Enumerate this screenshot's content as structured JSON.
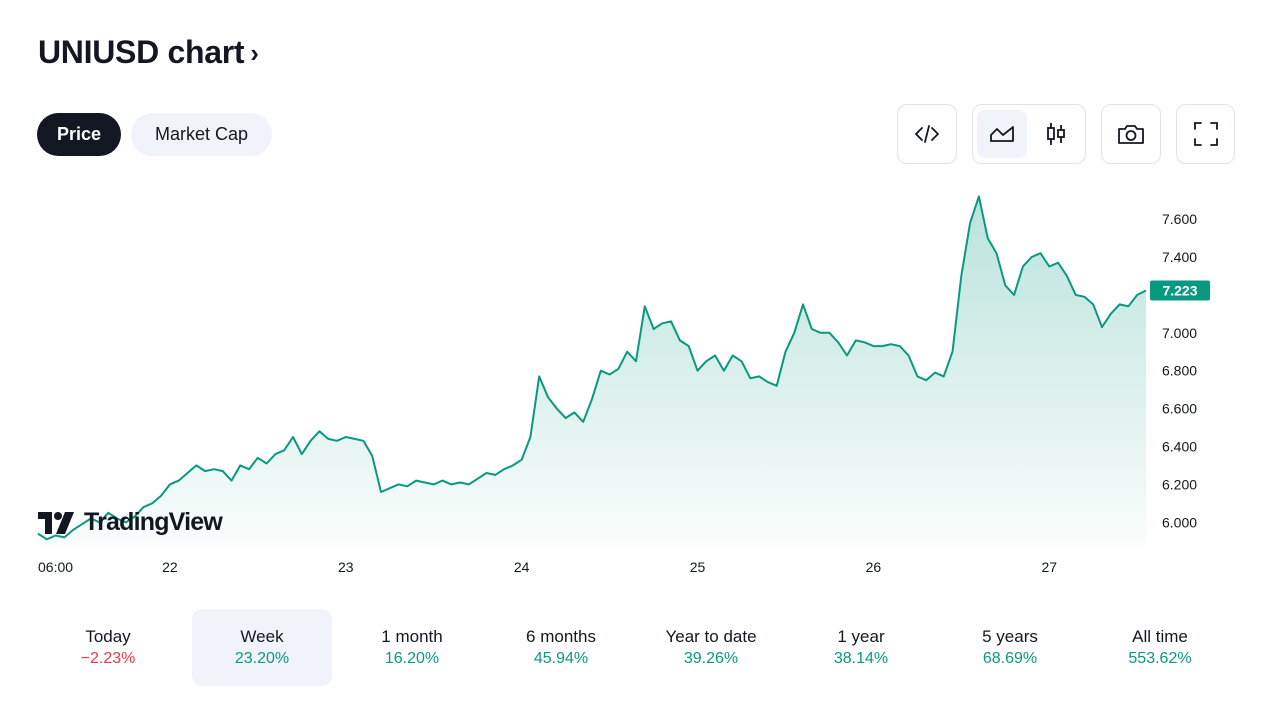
{
  "header": {
    "title": "UNIUSD chart",
    "chevron": "›"
  },
  "tabs": [
    {
      "label": "Price",
      "active": true
    },
    {
      "label": "Market Cap",
      "active": false
    }
  ],
  "toolbar": {
    "embed_icon": "code-icon",
    "area_icon": "area-chart-icon",
    "candle_icon": "candlestick-icon",
    "snapshot_icon": "camera-icon",
    "fullscreen_icon": "fullscreen-icon"
  },
  "logo": {
    "text": "TradingView"
  },
  "colors": {
    "line": "#089981",
    "negative": "#f23645",
    "dark": "#131722",
    "selected_bg": "#f0f3fa"
  },
  "chart_data": {
    "type": "area",
    "ylim": [
      5.88,
      7.78
    ],
    "y_ticks": [
      "7.600",
      "7.400",
      "7.200",
      "7.000",
      "6.800",
      "6.600",
      "6.400",
      "6.200",
      "6.000"
    ],
    "y_tick_values": [
      7.6,
      7.4,
      7.2,
      7.0,
      6.8,
      6.6,
      6.4,
      6.2,
      6.0
    ],
    "x_ticks": [
      "06:00",
      "22",
      "23",
      "24",
      "25",
      "26",
      "27"
    ],
    "x_tick_positions": [
      0,
      0.75,
      1.75,
      2.75,
      3.75,
      4.75,
      5.75
    ],
    "current_price": "7.223",
    "current_value": 7.223,
    "series": [
      {
        "x": [
          0,
          0.05,
          0.1,
          0.15,
          0.2,
          0.25,
          0.3,
          0.35,
          0.4,
          0.45,
          0.5,
          0.55,
          0.6,
          0.65,
          0.7,
          0.75,
          0.8,
          0.85,
          0.9,
          0.95,
          1.0,
          1.05,
          1.1,
          1.15,
          1.2,
          1.25,
          1.3,
          1.35,
          1.4,
          1.45,
          1.5,
          1.55,
          1.6,
          1.65,
          1.7,
          1.75,
          1.8,
          1.85,
          1.9,
          1.95,
          2.0,
          2.05,
          2.1,
          2.15,
          2.2,
          2.25,
          2.3,
          2.35,
          2.4,
          2.45,
          2.5,
          2.55,
          2.6,
          2.65,
          2.7,
          2.75,
          2.8,
          2.85,
          2.9,
          2.95,
          3.0,
          3.05,
          3.1,
          3.15,
          3.2,
          3.25,
          3.3,
          3.35,
          3.4,
          3.45,
          3.5,
          3.55,
          3.6,
          3.65,
          3.7,
          3.75,
          3.8,
          3.85,
          3.9,
          3.95,
          4.0,
          4.05,
          4.1,
          4.15,
          4.2,
          4.25,
          4.3,
          4.35,
          4.4,
          4.45,
          4.5,
          4.55,
          4.6,
          4.65,
          4.7,
          4.75,
          4.8,
          4.85,
          4.9,
          4.95,
          5.0,
          5.05,
          5.1,
          5.15,
          5.2,
          5.25,
          5.3,
          5.35,
          5.4,
          5.45,
          5.5,
          5.55,
          5.6,
          5.65,
          5.7,
          5.75,
          5.8,
          5.85,
          5.9,
          5.95,
          6.0,
          6.05,
          6.1,
          6.15,
          6.2,
          6.25,
          6.3
        ],
        "values": [
          5.94,
          5.91,
          5.93,
          5.92,
          5.96,
          5.99,
          6.02,
          6.0,
          6.05,
          6.02,
          6.0,
          6.03,
          6.08,
          6.1,
          6.14,
          6.2,
          6.22,
          6.26,
          6.3,
          6.27,
          6.28,
          6.27,
          6.22,
          6.3,
          6.28,
          6.34,
          6.31,
          6.36,
          6.38,
          6.45,
          6.36,
          6.43,
          6.48,
          6.44,
          6.43,
          6.45,
          6.44,
          6.43,
          6.35,
          6.16,
          6.18,
          6.2,
          6.19,
          6.22,
          6.21,
          6.2,
          6.22,
          6.2,
          6.21,
          6.2,
          6.23,
          6.26,
          6.25,
          6.28,
          6.3,
          6.33,
          6.45,
          6.77,
          6.66,
          6.6,
          6.55,
          6.58,
          6.53,
          6.65,
          6.8,
          6.78,
          6.81,
          6.9,
          6.85,
          7.14,
          7.02,
          7.05,
          7.06,
          6.96,
          6.93,
          6.8,
          6.85,
          6.88,
          6.8,
          6.88,
          6.85,
          6.76,
          6.77,
          6.74,
          6.72,
          6.9,
          7.0,
          7.15,
          7.02,
          7.0,
          7.0,
          6.95,
          6.88,
          6.96,
          6.95,
          6.93,
          6.93,
          6.94,
          6.93,
          6.88,
          6.77,
          6.75,
          6.79,
          6.77,
          6.9,
          7.3,
          7.58,
          7.72,
          7.5,
          7.42,
          7.25,
          7.2,
          7.35,
          7.4,
          7.42,
          7.35,
          7.37,
          7.3,
          7.2,
          7.19,
          7.15,
          7.03,
          7.1,
          7.15,
          7.14,
          7.2,
          7.223
        ]
      }
    ]
  },
  "periods": [
    {
      "label": "Today",
      "value": "−2.23%",
      "sign": "neg",
      "selected": false
    },
    {
      "label": "Week",
      "value": "23.20%",
      "sign": "pos",
      "selected": true
    },
    {
      "label": "1 month",
      "value": "16.20%",
      "sign": "pos",
      "selected": false
    },
    {
      "label": "6 months",
      "value": "45.94%",
      "sign": "pos",
      "selected": false
    },
    {
      "label": "Year to date",
      "value": "39.26%",
      "sign": "pos",
      "selected": false
    },
    {
      "label": "1 year",
      "value": "38.14%",
      "sign": "pos",
      "selected": false
    },
    {
      "label": "5 years",
      "value": "68.69%",
      "sign": "pos",
      "selected": false
    },
    {
      "label": "All time",
      "value": "553.62%",
      "sign": "pos",
      "selected": false
    }
  ]
}
